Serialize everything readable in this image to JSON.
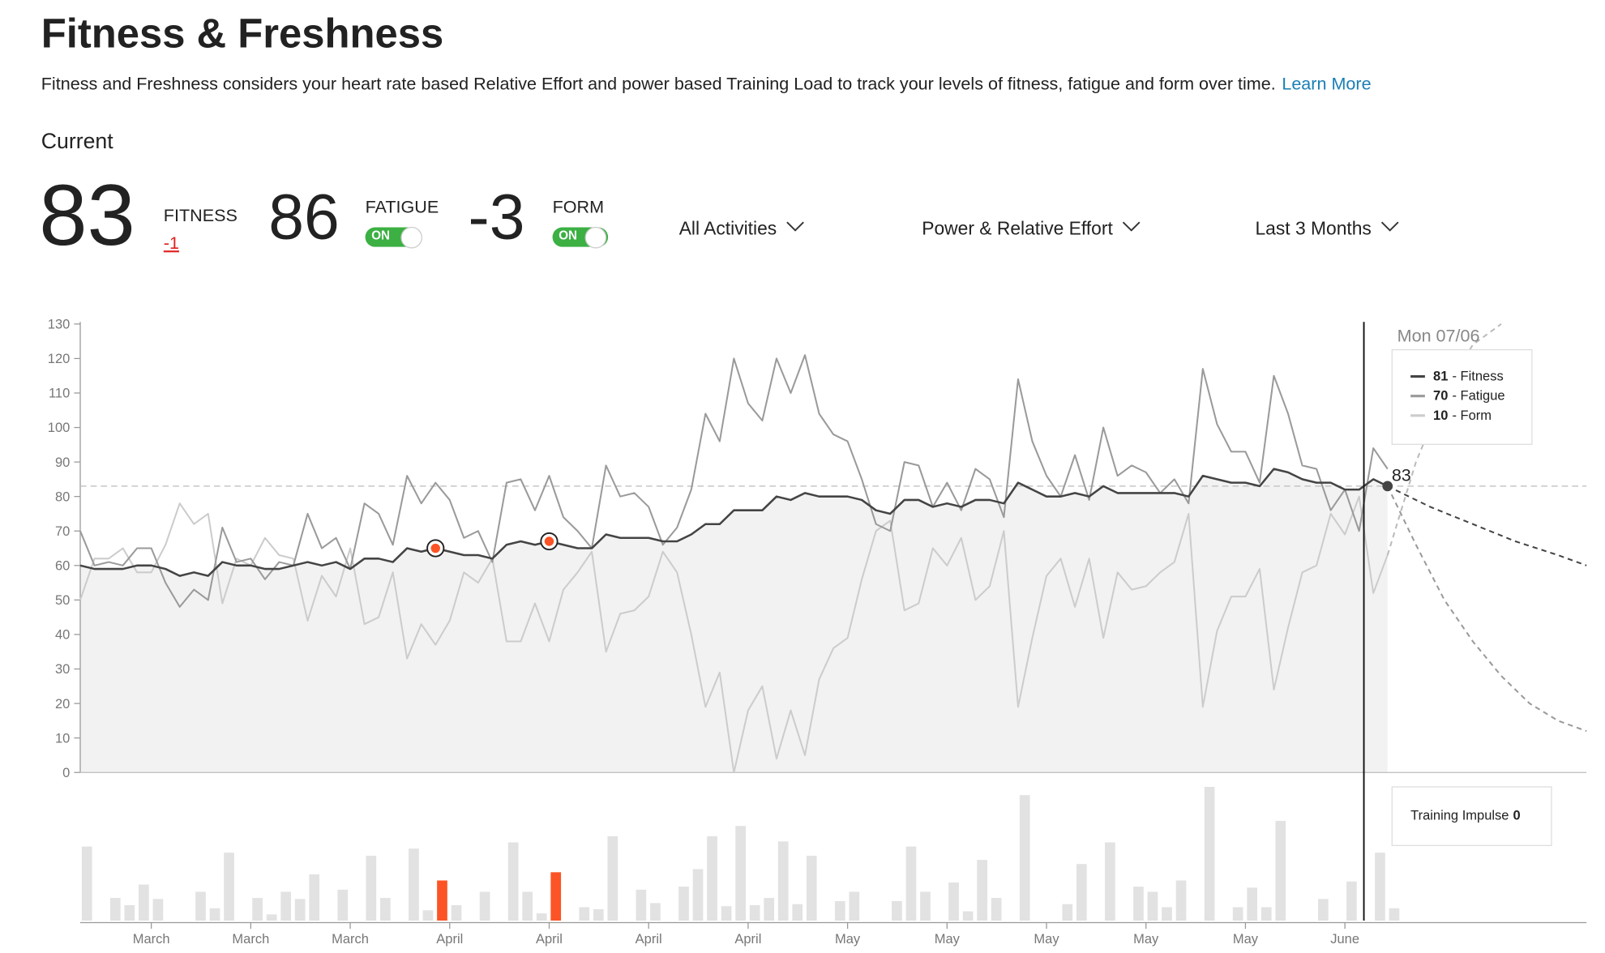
{
  "header": {
    "title": "Fitness & Freshness",
    "description": "Fitness and Freshness considers your heart rate based Relative Effort and power based Training Load to track your levels of fitness, fatigue and form over time.",
    "learn_more": "Learn More",
    "current_label": "Current"
  },
  "stats": {
    "fitness": {
      "value": 83,
      "label": "FITNESS",
      "change": -1
    },
    "fatigue": {
      "value": 86,
      "label": "FATIGUE",
      "toggle": "ON"
    },
    "form": {
      "value": -3,
      "label": "FORM",
      "toggle": "ON"
    }
  },
  "filters": [
    "All Activities",
    "Power & Relative Effort",
    "Last 3 Months"
  ],
  "chart_data": {
    "type": "line",
    "xlim": [
      0,
      106
    ],
    "ylim": [
      0,
      130
    ],
    "yticks": [
      0,
      10,
      20,
      30,
      40,
      50,
      60,
      70,
      80,
      90,
      100,
      110,
      120,
      130
    ],
    "xticks": [
      {
        "value": 5,
        "label": "March"
      },
      {
        "value": 12,
        "label": "March"
      },
      {
        "value": 19,
        "label": "March"
      },
      {
        "value": 26,
        "label": "April"
      },
      {
        "value": 33,
        "label": "April"
      },
      {
        "value": 40,
        "label": "April"
      },
      {
        "value": 47,
        "label": "April"
      },
      {
        "value": 54,
        "label": "May"
      },
      {
        "value": 61,
        "label": "May"
      },
      {
        "value": 68,
        "label": "May"
      },
      {
        "value": 75,
        "label": "May"
      },
      {
        "value": 82,
        "label": "May"
      },
      {
        "value": 89,
        "label": "June"
      }
    ],
    "x": [
      0,
      1,
      2,
      3,
      4,
      5,
      6,
      7,
      8,
      9,
      10,
      11,
      12,
      13,
      14,
      15,
      16,
      17,
      18,
      19,
      20,
      21,
      22,
      23,
      24,
      25,
      26,
      27,
      28,
      29,
      30,
      31,
      32,
      33,
      34,
      35,
      36,
      37,
      38,
      39,
      40,
      41,
      42,
      43,
      44,
      45,
      46,
      47,
      48,
      49,
      50,
      51,
      52,
      53,
      54,
      55,
      56,
      57,
      58,
      59,
      60,
      61,
      62,
      63,
      64,
      65,
      66,
      67,
      68,
      69,
      70,
      71,
      72,
      73,
      74,
      75,
      76,
      77,
      78,
      79,
      80,
      81,
      82,
      83,
      84,
      85,
      86,
      87,
      88,
      89,
      90,
      91,
      92
    ],
    "series": [
      {
        "name": "Fitness",
        "color": "#444444",
        "fill": "#f2f2f2",
        "values": [
          60,
          59,
          59,
          59,
          60,
          60,
          59,
          57,
          58,
          57,
          61,
          60,
          60,
          59,
          59,
          60,
          61,
          60,
          61,
          59,
          62,
          62,
          61,
          65,
          64,
          65,
          64,
          63,
          63,
          62,
          66,
          67,
          66,
          67,
          66,
          65,
          65,
          69,
          68,
          68,
          68,
          67,
          67,
          69,
          72,
          72,
          76,
          76,
          76,
          80,
          79,
          81,
          80,
          80,
          80,
          79,
          76,
          75,
          79,
          79,
          77,
          78,
          77,
          79,
          79,
          78,
          84,
          82,
          80,
          80,
          81,
          80,
          83,
          81,
          81,
          81,
          81,
          81,
          80,
          86,
          85,
          84,
          84,
          83,
          88,
          87,
          85,
          84,
          84,
          82,
          82,
          85,
          83
        ]
      },
      {
        "name": "Fatigue",
        "color": "#9a9a9a",
        "values": [
          70,
          60,
          61,
          60,
          65,
          65,
          55,
          48,
          53,
          50,
          71,
          61,
          62,
          56,
          61,
          60,
          75,
          65,
          68,
          59,
          78,
          75,
          66,
          86,
          78,
          84,
          79,
          68,
          70,
          61,
          84,
          85,
          76,
          86,
          74,
          70,
          65,
          89,
          80,
          81,
          77,
          66,
          71,
          82,
          104,
          96,
          120,
          107,
          102,
          120,
          110,
          121,
          104,
          98,
          96,
          85,
          72,
          70,
          90,
          89,
          77,
          84,
          76,
          88,
          85,
          74,
          114,
          96,
          86,
          80,
          92,
          79,
          100,
          86,
          89,
          87,
          81,
          85,
          78,
          117,
          101,
          93,
          93,
          84,
          115,
          104,
          89,
          88,
          76,
          82,
          70,
          94,
          88
        ]
      },
      {
        "name": "Form",
        "color": "#cccccc",
        "values": [
          50,
          62,
          62,
          65,
          58,
          58,
          66,
          78,
          72,
          75,
          49,
          62,
          60,
          68,
          63,
          62,
          44,
          57,
          51,
          65,
          43,
          45,
          58,
          33,
          43,
          37,
          44,
          58,
          55,
          62,
          38,
          38,
          49,
          38,
          53,
          58,
          64,
          35,
          46,
          47,
          51,
          64,
          58,
          40,
          19,
          29,
          0,
          18,
          25,
          4,
          18,
          5,
          27,
          36,
          39,
          56,
          70,
          73,
          47,
          49,
          65,
          60,
          68,
          50,
          54,
          70,
          19,
          39,
          57,
          62,
          48,
          62,
          39,
          58,
          53,
          54,
          58,
          61,
          75,
          19,
          41,
          51,
          51,
          59,
          24,
          42,
          58,
          60,
          75,
          69,
          80,
          52,
          63
        ]
      }
    ],
    "projections": [
      {
        "color": "#444444",
        "x": [
          92,
          95,
          98,
          101,
          104,
          106
        ],
        "values": [
          83,
          77,
          72,
          67,
          63,
          60
        ]
      },
      {
        "color": "#9a9a9a",
        "x": [
          92,
          94,
          96,
          98,
          100,
          102,
          104,
          106
        ],
        "values": [
          83,
          66,
          50,
          38,
          28,
          20,
          15,
          12
        ]
      },
      {
        "color": "#bbbbbb",
        "x": [
          92,
          94,
          96,
          98,
          100
        ],
        "values": [
          63,
          90,
          110,
          124,
          130
        ]
      }
    ],
    "impulse": {
      "color": "#e2e2e2",
      "highlight_color": "#fc5426",
      "highlighted": [
        25,
        33
      ],
      "values": [
        72,
        0,
        22,
        15,
        35,
        21,
        0,
        0,
        28,
        12,
        66,
        0,
        22,
        6,
        28,
        21,
        45,
        0,
        30,
        0,
        63,
        22,
        0,
        70,
        10,
        39,
        15,
        0,
        28,
        0,
        76,
        28,
        7,
        47,
        0,
        13,
        11,
        82,
        0,
        30,
        17,
        0,
        33,
        50,
        82,
        14,
        92,
        15,
        22,
        77,
        16,
        63,
        0,
        19,
        28,
        0,
        0,
        19,
        72,
        28,
        0,
        37,
        9,
        59,
        22,
        0,
        122,
        0,
        0,
        16,
        55,
        0,
        76,
        0,
        33,
        28,
        13,
        39,
        0,
        130,
        0,
        13,
        32,
        13,
        97,
        0,
        0,
        21,
        0,
        38,
        0,
        66,
        12
      ]
    },
    "hover": {
      "date": "Mon 07/06",
      "value": 83,
      "entries": [
        {
          "value": 81,
          "label": "- Fitness",
          "color": "#444444"
        },
        {
          "value": 70,
          "label": "- Fatigue",
          "color": "#9a9a9a"
        },
        {
          "value": 10,
          "label": "- Form",
          "color": "#cccccc"
        }
      ]
    },
    "impulse_box": {
      "label": "Training Impulse",
      "value": 0
    }
  }
}
